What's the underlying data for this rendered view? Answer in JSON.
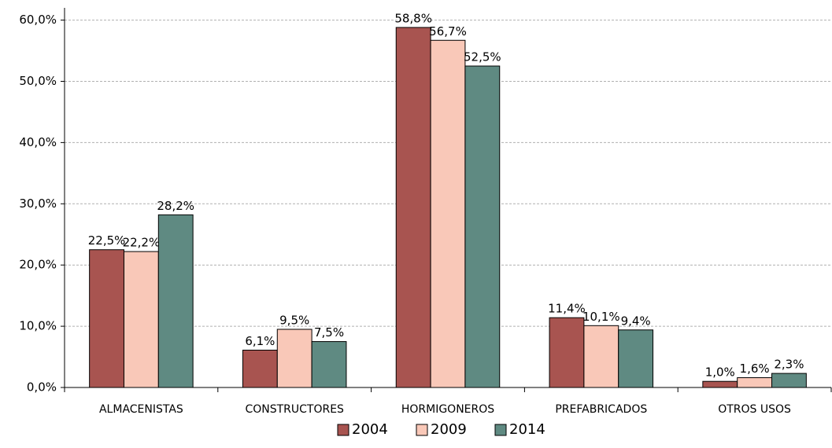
{
  "chart_data": {
    "type": "bar",
    "categories": [
      "ALMACENISTAS",
      "CONSTRUCTORES",
      "HORMIGONEROS",
      "PREFABRICADOS",
      "OTROS USOS"
    ],
    "series": [
      {
        "name": "2004",
        "color": "#a85450",
        "values": [
          22.5,
          6.1,
          58.8,
          11.4,
          1.0
        ],
        "value_labels": [
          "22,5%",
          "6,1%",
          "58,8%",
          "11,4%",
          "1,0%"
        ]
      },
      {
        "name": "2009",
        "color": "#f9c8b8",
        "values": [
          22.2,
          9.5,
          56.7,
          10.1,
          1.6
        ],
        "value_labels": [
          "22,2%",
          "9,5%",
          "56,7%",
          "10,1%",
          "1,6%"
        ]
      },
      {
        "name": "2014",
        "color": "#5f8a82",
        "values": [
          28.2,
          7.5,
          52.5,
          9.4,
          2.3
        ],
        "value_labels": [
          "28,2%",
          "7,5%",
          "52,5%",
          "9,4%",
          "2,3%"
        ]
      }
    ],
    "ylim": [
      0,
      62
    ],
    "yticks": [
      {
        "value": 0,
        "label": "0,0%"
      },
      {
        "value": 10,
        "label": "10,0%"
      },
      {
        "value": 20,
        "label": "20,0%"
      },
      {
        "value": 30,
        "label": "30,0%"
      },
      {
        "value": 40,
        "label": "40,0%"
      },
      {
        "value": 50,
        "label": "50,0%"
      },
      {
        "value": 60,
        "label": "60,0%"
      }
    ],
    "grid": true,
    "legend": "bottom"
  }
}
